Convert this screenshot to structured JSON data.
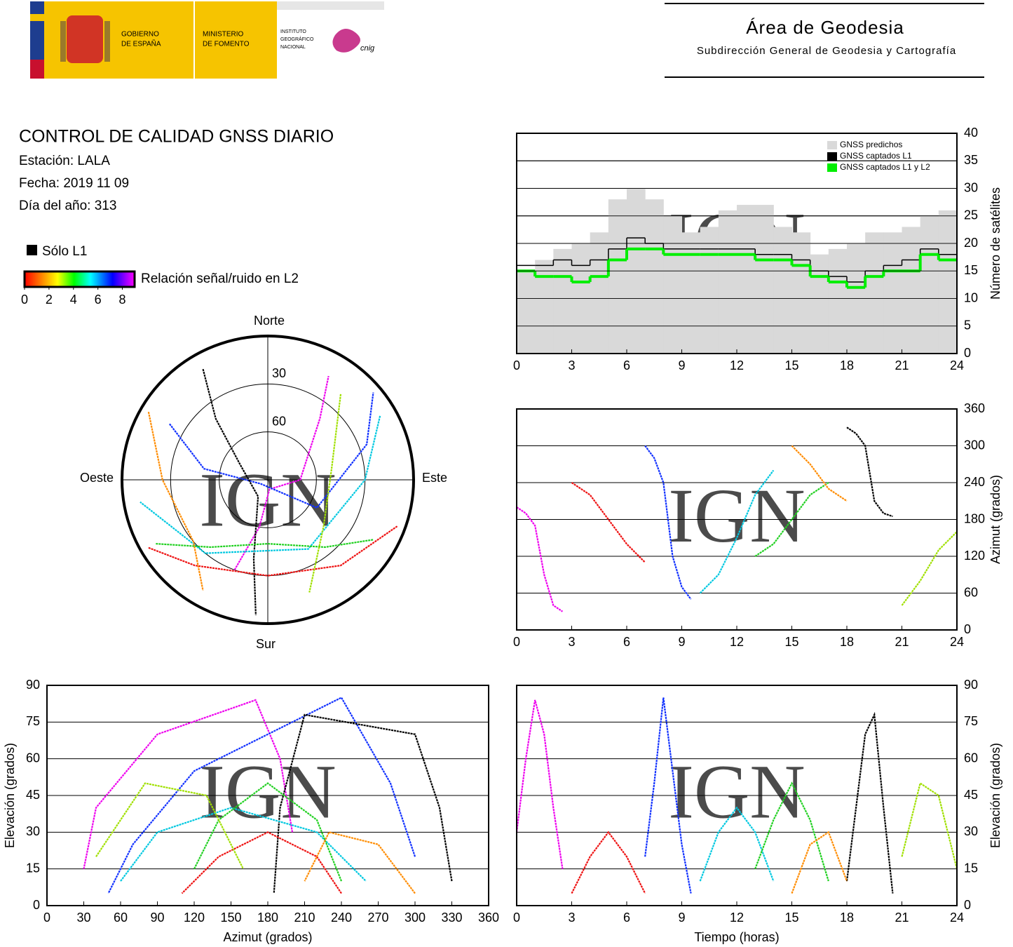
{
  "header": {
    "gobierno": [
      "GOBIERNO",
      "DE ESPAÑA"
    ],
    "ministerio": [
      "MINISTERIO",
      "DE FOMENTO"
    ],
    "instituto": [
      "INSTITUTO",
      "GEOGRÁFICO",
      "NACIONAL"
    ],
    "cnig": "cnig",
    "title": "Área de Geodesia",
    "subtitle": "Subdirección General de Geodesia y Cartografía"
  },
  "report": {
    "title": "CONTROL DE CALIDAD GNSS DIARIO",
    "station": "Estación: LALA",
    "date": "Fecha: 2019 11 09",
    "doy": "Día del año: 313"
  },
  "legend": {
    "l1": "Sólo L1",
    "snr_label": "Relación señal/ruido en L2",
    "snr_lim": [
      0,
      9
    ],
    "snr_ticks": [
      0,
      2,
      4,
      6,
      8
    ]
  },
  "chart_data": [
    {
      "type": "step",
      "xlim": [
        0,
        24
      ],
      "xticks": [
        0,
        3,
        6,
        9,
        12,
        15,
        18,
        21,
        24
      ],
      "ylim": [
        0,
        40
      ],
      "yticks": [
        0,
        5,
        10,
        15,
        20,
        25,
        30,
        35,
        40
      ],
      "y_label": "Número de satélites",
      "y_axis_side": "right",
      "grid": true,
      "legend": "upper right",
      "watermark": "IGN",
      "x": [
        0,
        1,
        2,
        3,
        4,
        5,
        6,
        7,
        8,
        9,
        10,
        11,
        12,
        13,
        14,
        15,
        16,
        17,
        18,
        19,
        20,
        21,
        22,
        23
      ],
      "series": [
        {
          "name": "GNSS predichos",
          "color": "#d9d9d9",
          "style": "area",
          "values": [
            15,
            17,
            19,
            20,
            22,
            28,
            30,
            28,
            25,
            22,
            23,
            26,
            27,
            27,
            23,
            22,
            18,
            19,
            20,
            22,
            22,
            23,
            25,
            26
          ]
        },
        {
          "name": "GNSS captados L1",
          "color": "#000000",
          "style": "line",
          "values": [
            16,
            16,
            17,
            16,
            17,
            19,
            21,
            20,
            19,
            19,
            19,
            19,
            19,
            18,
            18,
            17,
            15,
            14,
            13,
            15,
            16,
            17,
            19,
            18
          ]
        },
        {
          "name": "GNSS captados L1 y L2",
          "color": "#00ee00",
          "style": "line",
          "values": [
            15,
            14,
            14,
            13,
            14,
            17,
            19,
            19,
            18,
            18,
            18,
            18,
            18,
            17,
            17,
            16,
            14,
            13,
            12,
            14,
            15,
            15,
            18,
            17
          ]
        }
      ]
    },
    {
      "type": "tracks",
      "xlim": [
        0,
        24
      ],
      "xticks": [
        0,
        3,
        6,
        9,
        12,
        15,
        18,
        21,
        24
      ],
      "ylim": [
        0,
        360
      ],
      "yticks": [
        0,
        60,
        120,
        180,
        240,
        300,
        360
      ],
      "y_label": "Azimut (grados)",
      "y_axis_side": "right",
      "grid": true,
      "watermark": "IGN",
      "series": [
        {
          "color": "#ee00ee",
          "x": [
            0,
            0.5,
            1,
            1.5,
            2,
            2.5
          ],
          "values": [
            200,
            190,
            170,
            90,
            40,
            30
          ]
        },
        {
          "color": "#1030ff",
          "x": [
            7,
            7.5,
            8,
            8.5,
            9,
            9.5
          ],
          "values": [
            300,
            280,
            240,
            120,
            70,
            50
          ]
        },
        {
          "color": "#000000",
          "x": [
            18,
            18.5,
            19,
            19.5,
            20,
            20.5
          ],
          "values": [
            330,
            320,
            300,
            210,
            190,
            185
          ]
        },
        {
          "color": "#00c8e0",
          "x": [
            10,
            11,
            12,
            13,
            14
          ],
          "values": [
            60,
            90,
            150,
            220,
            260
          ]
        },
        {
          "color": "#20d020",
          "x": [
            13,
            14,
            15,
            16,
            17
          ],
          "values": [
            120,
            140,
            180,
            220,
            240
          ]
        },
        {
          "color": "#ee1010",
          "x": [
            3,
            4,
            5,
            6,
            7
          ],
          "values": [
            240,
            220,
            180,
            140,
            110
          ]
        },
        {
          "color": "#a0e000",
          "x": [
            21,
            22,
            23,
            24
          ],
          "values": [
            40,
            80,
            130,
            160
          ]
        },
        {
          "color": "#ff8c00",
          "x": [
            15,
            16,
            17,
            18
          ],
          "values": [
            300,
            270,
            230,
            210
          ]
        }
      ]
    },
    {
      "type": "polar",
      "rlim": [
        0,
        90
      ],
      "rticks": [
        30,
        60
      ],
      "directions": {
        "north": "Norte",
        "east": "Este",
        "south": "Sur",
        "west": "Oeste"
      },
      "watermark": "IGN",
      "series": [
        {
          "color": "#ee00ee",
          "azimuth": [
            200,
            190,
            170,
            90,
            40,
            30
          ],
          "values": [
            30,
            60,
            84,
            70,
            40,
            15
          ]
        },
        {
          "color": "#1030ff",
          "azimuth": [
            300,
            280,
            240,
            120,
            70,
            50
          ],
          "values": [
            20,
            50,
            85,
            55,
            25,
            5
          ]
        },
        {
          "color": "#000000",
          "azimuth": [
            330,
            320,
            300,
            210,
            190,
            185
          ],
          "values": [
            10,
            40,
            70,
            78,
            40,
            5
          ]
        },
        {
          "color": "#00c8e0",
          "azimuth": [
            60,
            90,
            150,
            220,
            260
          ],
          "values": [
            10,
            30,
            40,
            30,
            10
          ]
        },
        {
          "color": "#20d020",
          "azimuth": [
            120,
            140,
            180,
            220,
            240
          ],
          "values": [
            15,
            35,
            50,
            35,
            10
          ]
        },
        {
          "color": "#ee1010",
          "azimuth": [
            240,
            220,
            180,
            140,
            110
          ],
          "values": [
            5,
            20,
            30,
            20,
            5
          ]
        },
        {
          "color": "#a0e000",
          "azimuth": [
            40,
            80,
            130,
            160
          ],
          "values": [
            20,
            50,
            45,
            15
          ]
        },
        {
          "color": "#ff8c00",
          "azimuth": [
            300,
            270,
            230,
            210
          ],
          "values": [
            5,
            25,
            30,
            10
          ]
        }
      ]
    },
    {
      "type": "tracks",
      "xlim": [
        0,
        360
      ],
      "xticks": [
        0,
        30,
        60,
        90,
        120,
        150,
        180,
        210,
        240,
        270,
        300,
        330,
        360
      ],
      "ylim": [
        0,
        90
      ],
      "yticks": [
        0,
        15,
        30,
        45,
        60,
        75,
        90
      ],
      "x_label": "Azimut (grados)",
      "y_label": "Elevación (grados)",
      "y_axis_side": "left",
      "grid": true,
      "watermark": "IGN",
      "series": [
        {
          "color": "#ee00ee",
          "x": [
            200,
            190,
            170,
            90,
            40,
            30
          ],
          "values": [
            30,
            60,
            84,
            70,
            40,
            15
          ]
        },
        {
          "color": "#1030ff",
          "x": [
            300,
            280,
            240,
            120,
            70,
            50
          ],
          "values": [
            20,
            50,
            85,
            55,
            25,
            5
          ]
        },
        {
          "color": "#000000",
          "x": [
            330,
            320,
            300,
            210,
            190,
            185
          ],
          "values": [
            10,
            40,
            70,
            78,
            40,
            5
          ]
        },
        {
          "color": "#00c8e0",
          "x": [
            60,
            90,
            150,
            220,
            260
          ],
          "values": [
            10,
            30,
            40,
            30,
            10
          ]
        },
        {
          "color": "#20d020",
          "x": [
            120,
            140,
            180,
            220,
            240
          ],
          "values": [
            15,
            35,
            50,
            35,
            10
          ]
        },
        {
          "color": "#ee1010",
          "x": [
            240,
            220,
            180,
            140,
            110
          ],
          "values": [
            5,
            20,
            30,
            20,
            5
          ]
        },
        {
          "color": "#a0e000",
          "x": [
            40,
            80,
            130,
            160
          ],
          "values": [
            20,
            50,
            45,
            15
          ]
        },
        {
          "color": "#ff8c00",
          "x": [
            300,
            270,
            230,
            210
          ],
          "values": [
            5,
            25,
            30,
            10
          ]
        }
      ]
    },
    {
      "type": "tracks",
      "xlim": [
        0,
        24
      ],
      "xticks": [
        0,
        3,
        6,
        9,
        12,
        15,
        18,
        21,
        24
      ],
      "ylim": [
        0,
        90
      ],
      "yticks": [
        0,
        15,
        30,
        45,
        60,
        75,
        90
      ],
      "x_label": "Tiempo (horas)",
      "y_label": "Elevación (grados)",
      "y_axis_side": "right",
      "grid": true,
      "watermark": "IGN",
      "series": [
        {
          "color": "#ee00ee",
          "x": [
            0,
            0.5,
            1,
            1.5,
            2,
            2.5
          ],
          "values": [
            30,
            60,
            84,
            70,
            40,
            15
          ]
        },
        {
          "color": "#1030ff",
          "x": [
            7,
            7.5,
            8,
            8.5,
            9,
            9.5
          ],
          "values": [
            20,
            50,
            85,
            55,
            25,
            5
          ]
        },
        {
          "color": "#000000",
          "x": [
            18,
            18.5,
            19,
            19.5,
            20,
            20.5
          ],
          "values": [
            10,
            40,
            70,
            78,
            40,
            5
          ]
        },
        {
          "color": "#00c8e0",
          "x": [
            10,
            11,
            12,
            13,
            14
          ],
          "values": [
            10,
            30,
            40,
            30,
            10
          ]
        },
        {
          "color": "#20d020",
          "x": [
            13,
            14,
            15,
            16,
            17
          ],
          "values": [
            15,
            35,
            50,
            35,
            10
          ]
        },
        {
          "color": "#ee1010",
          "x": [
            3,
            4,
            5,
            6,
            7
          ],
          "values": [
            5,
            20,
            30,
            20,
            5
          ]
        },
        {
          "color": "#a0e000",
          "x": [
            21,
            22,
            23,
            24
          ],
          "values": [
            20,
            50,
            45,
            15
          ]
        },
        {
          "color": "#ff8c00",
          "x": [
            15,
            16,
            17,
            18
          ],
          "values": [
            5,
            25,
            30,
            10
          ]
        }
      ]
    }
  ]
}
